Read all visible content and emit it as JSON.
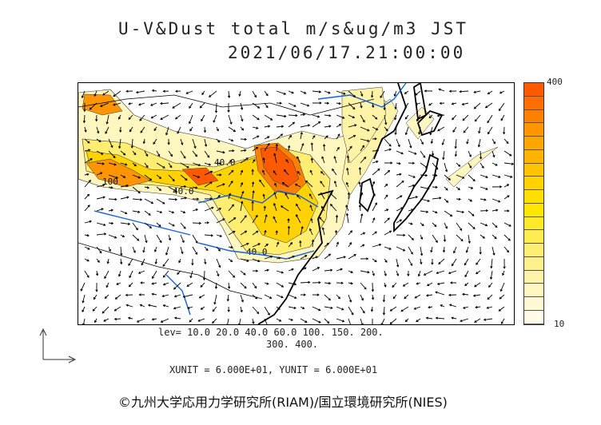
{
  "header": {
    "title_line1": "U-V&Dust total m/s&ug/m3 JST",
    "title_line2": "2021/06/17.21:00:00"
  },
  "map": {
    "contour_labels": [
      "40.0",
      "40.0",
      "100",
      "40.0"
    ],
    "layers": [
      "wind-vectors",
      "dust-concentration",
      "coastlines",
      "rivers"
    ]
  },
  "colorbar": {
    "max_label": "400",
    "min_label": "10",
    "colors": [
      "#ff5a00",
      "#ff6d00",
      "#ff8000",
      "#ff9500",
      "#ffa500",
      "#ffb300",
      "#ffc400",
      "#ffd200",
      "#ffdf00",
      "#ffe600",
      "#ffea2a",
      "#ffec52",
      "#ffee72",
      "#fff08e",
      "#fff3a8",
      "#fff6c0",
      "#fff8d5",
      "#fffbe6"
    ]
  },
  "legend": {
    "levels_line1": "lev= 10.0 20.0 40.0 60.0 100. 150. 200.",
    "levels_line2": "300. 400.",
    "unit_line": "XUNIT = 6.000E+01, YUNIT = 6.000E+01"
  },
  "footer": {
    "credit": "©九州大学応用力学研究所(RIAM)/国立環境研究所(NIES)"
  }
}
